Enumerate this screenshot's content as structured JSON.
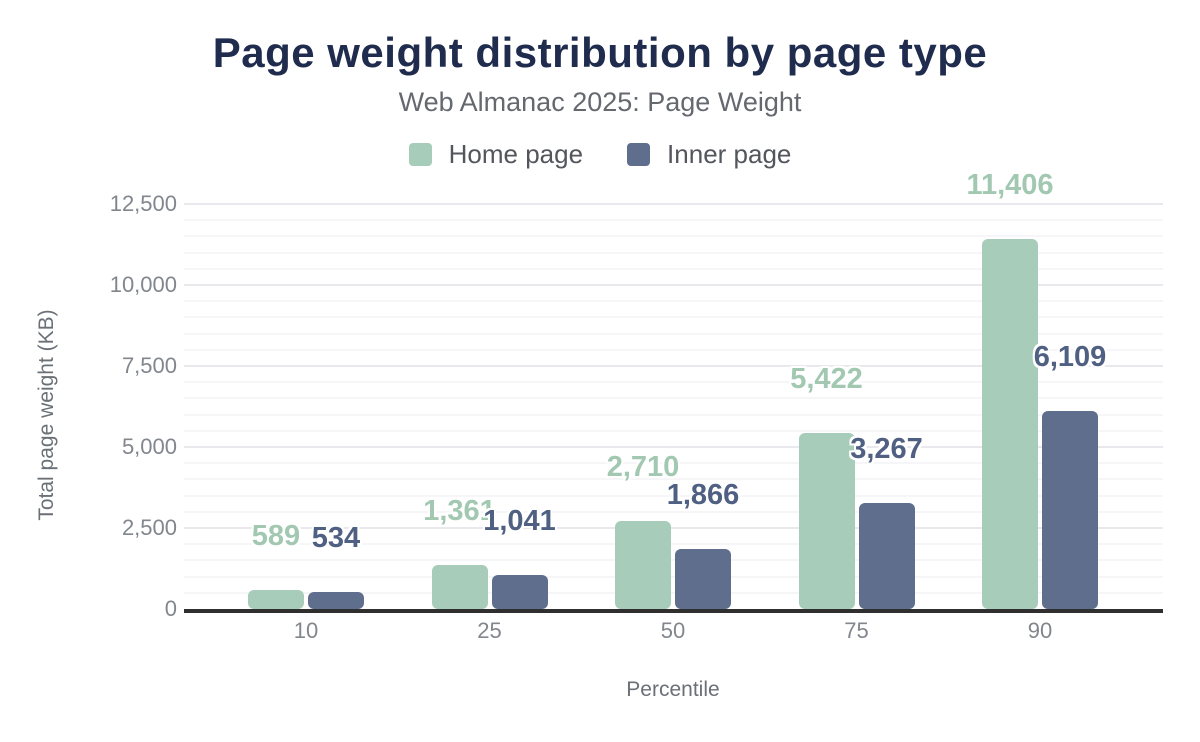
{
  "title": "Page weight distribution by page type",
  "subtitle": "Web Almanac 2025: Page Weight",
  "legend": {
    "items": [
      {
        "label": "Home page"
      },
      {
        "label": "Inner page"
      }
    ]
  },
  "chart_data": {
    "type": "bar",
    "title": "Page weight distribution by page type",
    "subtitle": "Web Almanac 2025: Page Weight",
    "categories": [
      "10",
      "25",
      "50",
      "75",
      "90"
    ],
    "series": [
      {
        "name": "Home page",
        "color": "#a8ccba",
        "label_color": "#a2c8b2",
        "values": [
          589,
          1361,
          2710,
          5422,
          11406
        ],
        "value_labels": [
          "589",
          "1,361",
          "2,710",
          "5,422",
          "11,406"
        ]
      },
      {
        "name": "Inner page",
        "color": "#5f6e8c",
        "label_color": "#506083",
        "values": [
          534,
          1041,
          1866,
          3267,
          6109
        ],
        "value_labels": [
          "534",
          "1,041",
          "1,866",
          "3,267",
          "6,109"
        ]
      }
    ],
    "xlabel": "Percentile",
    "ylabel": "Total page weight (KB)",
    "ylim": [
      0,
      13000
    ],
    "yticks": {
      "values": [
        0,
        2500,
        5000,
        7500,
        10000,
        12500
      ],
      "labels": [
        "0",
        "2,500",
        "5,000",
        "7,500",
        "10,000",
        "12,500"
      ]
    },
    "minor_tick_interval": 500,
    "grid": true,
    "legend_position": "top"
  },
  "colors": {
    "title": "#202c4e",
    "subtitle": "#65696f",
    "legend_text": "#53565c",
    "tick_label": "#82868d",
    "axis_title": "#6b7077",
    "grid_major": "#e9e9ed",
    "grid_minor": "#f6f6f8",
    "axis_line": "#2f2f2f",
    "background": "#ffffff"
  }
}
